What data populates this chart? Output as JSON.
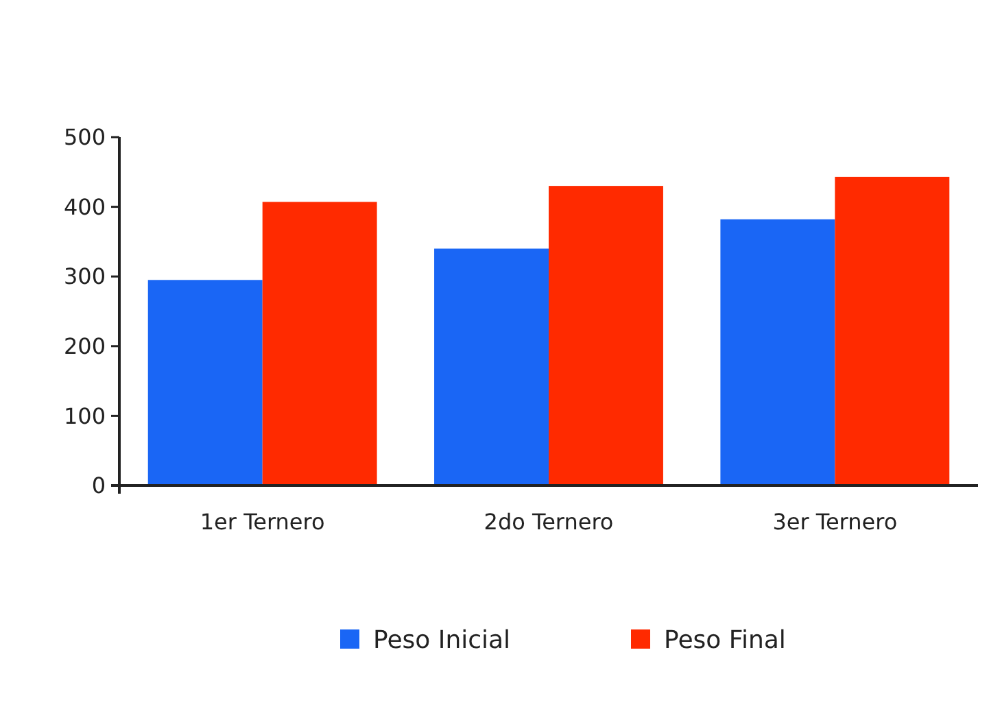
{
  "chart_data": {
    "type": "bar",
    "categories": [
      "1er Ternero",
      "2do Ternero",
      "3er Ternero"
    ],
    "series": [
      {
        "name": "Peso Inicial",
        "color": "#1a66f5",
        "values": [
          295,
          340,
          382
        ]
      },
      {
        "name": "Peso Final",
        "color": "#ff2a00",
        "values": [
          407,
          430,
          443
        ]
      }
    ],
    "ylim": [
      0,
      500
    ],
    "yticks": [
      0,
      100,
      200,
      300,
      400,
      500
    ],
    "grid": false,
    "legend": "bottom"
  }
}
